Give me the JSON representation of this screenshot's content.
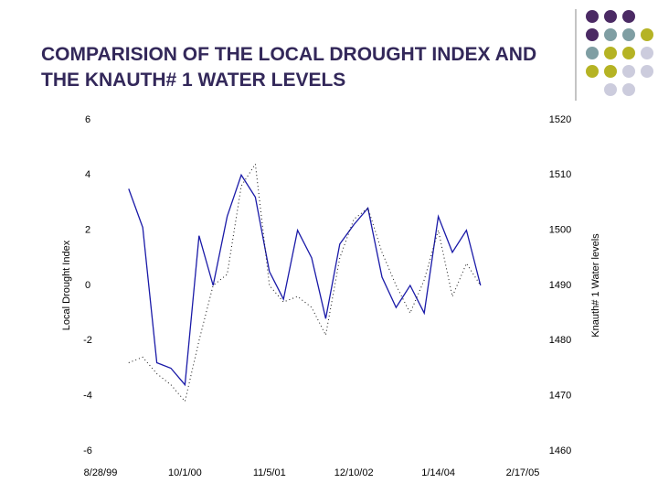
{
  "chart_data": {
    "type": "line",
    "title": "COMPARISION OF THE LOCAL DROUGHT INDEX AND THE KNAUTH# 1 WATER LEVELS",
    "ylabel": "Local Drought Index",
    "y2label": "Knauth# 1 Water levels",
    "categories": [
      "8/28/99",
      null,
      null,
      null,
      null,
      null,
      "10/1/00",
      null,
      null,
      null,
      null,
      null,
      "11/5/01",
      null,
      null,
      null,
      null,
      null,
      "12/10/02",
      null,
      null,
      null,
      null,
      null,
      "1/14/04",
      null,
      null,
      null,
      null,
      null,
      "2/17/05"
    ],
    "ylim": [
      -6,
      6
    ],
    "yticks": [
      -6,
      -4,
      -2,
      0,
      2,
      4,
      6
    ],
    "y2lim": [
      1460,
      1520
    ],
    "y2ticks": [
      1460,
      1470,
      1480,
      1490,
      1500,
      1510,
      1520
    ],
    "series": [
      {
        "color": "#1a1aa8",
        "values": [
          null,
          null,
          3.5,
          2.1,
          -2.8,
          -3.0,
          -3.6,
          1.8,
          0.0,
          2.5,
          4.0,
          3.2,
          0.5,
          -0.5,
          2.0,
          1.0,
          -1.2,
          1.5,
          2.2,
          2.8,
          0.3,
          -0.8,
          0.0,
          -1.0,
          2.5,
          1.2,
          2.0,
          0.0,
          null,
          null,
          null
        ]
      },
      {
        "color": "#111111",
        "axis": "y2",
        "values": [
          null,
          null,
          1476,
          1477,
          1474,
          1472,
          1469,
          1480,
          1490,
          1492,
          1508,
          1512,
          1490,
          1487,
          1488,
          1486,
          1481,
          1495,
          1502,
          1504,
          1496,
          1490,
          1485,
          1491,
          1500,
          1488,
          1494,
          1490,
          null,
          null,
          null
        ]
      }
    ]
  }
}
